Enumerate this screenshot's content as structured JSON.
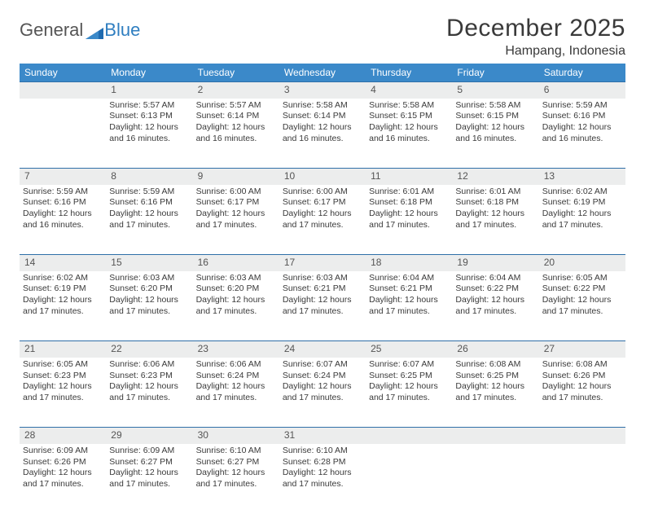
{
  "brand": {
    "part1": "General",
    "part2": "Blue"
  },
  "title": "December 2025",
  "location": "Hampang, Indonesia",
  "colors": {
    "header_bg": "#3b89c9",
    "header_text": "#ffffff",
    "row_sep": "#2f6fa8",
    "daynum_bg": "#eceded",
    "body_text": "#3a3a3a",
    "brand_accent": "#2f7ec0"
  },
  "weekdays": [
    "Sunday",
    "Monday",
    "Tuesday",
    "Wednesday",
    "Thursday",
    "Friday",
    "Saturday"
  ],
  "weeks": [
    {
      "nums": [
        "",
        "1",
        "2",
        "3",
        "4",
        "5",
        "6"
      ],
      "cells": [
        "",
        "Sunrise: 5:57 AM\nSunset: 6:13 PM\nDaylight: 12 hours and 16 minutes.",
        "Sunrise: 5:57 AM\nSunset: 6:14 PM\nDaylight: 12 hours and 16 minutes.",
        "Sunrise: 5:58 AM\nSunset: 6:14 PM\nDaylight: 12 hours and 16 minutes.",
        "Sunrise: 5:58 AM\nSunset: 6:15 PM\nDaylight: 12 hours and 16 minutes.",
        "Sunrise: 5:58 AM\nSunset: 6:15 PM\nDaylight: 12 hours and 16 minutes.",
        "Sunrise: 5:59 AM\nSunset: 6:16 PM\nDaylight: 12 hours and 16 minutes."
      ]
    },
    {
      "nums": [
        "7",
        "8",
        "9",
        "10",
        "11",
        "12",
        "13"
      ],
      "cells": [
        "Sunrise: 5:59 AM\nSunset: 6:16 PM\nDaylight: 12 hours and 16 minutes.",
        "Sunrise: 5:59 AM\nSunset: 6:16 PM\nDaylight: 12 hours and 17 minutes.",
        "Sunrise: 6:00 AM\nSunset: 6:17 PM\nDaylight: 12 hours and 17 minutes.",
        "Sunrise: 6:00 AM\nSunset: 6:17 PM\nDaylight: 12 hours and 17 minutes.",
        "Sunrise: 6:01 AM\nSunset: 6:18 PM\nDaylight: 12 hours and 17 minutes.",
        "Sunrise: 6:01 AM\nSunset: 6:18 PM\nDaylight: 12 hours and 17 minutes.",
        "Sunrise: 6:02 AM\nSunset: 6:19 PM\nDaylight: 12 hours and 17 minutes."
      ]
    },
    {
      "nums": [
        "14",
        "15",
        "16",
        "17",
        "18",
        "19",
        "20"
      ],
      "cells": [
        "Sunrise: 6:02 AM\nSunset: 6:19 PM\nDaylight: 12 hours and 17 minutes.",
        "Sunrise: 6:03 AM\nSunset: 6:20 PM\nDaylight: 12 hours and 17 minutes.",
        "Sunrise: 6:03 AM\nSunset: 6:20 PM\nDaylight: 12 hours and 17 minutes.",
        "Sunrise: 6:03 AM\nSunset: 6:21 PM\nDaylight: 12 hours and 17 minutes.",
        "Sunrise: 6:04 AM\nSunset: 6:21 PM\nDaylight: 12 hours and 17 minutes.",
        "Sunrise: 6:04 AM\nSunset: 6:22 PM\nDaylight: 12 hours and 17 minutes.",
        "Sunrise: 6:05 AM\nSunset: 6:22 PM\nDaylight: 12 hours and 17 minutes."
      ]
    },
    {
      "nums": [
        "21",
        "22",
        "23",
        "24",
        "25",
        "26",
        "27"
      ],
      "cells": [
        "Sunrise: 6:05 AM\nSunset: 6:23 PM\nDaylight: 12 hours and 17 minutes.",
        "Sunrise: 6:06 AM\nSunset: 6:23 PM\nDaylight: 12 hours and 17 minutes.",
        "Sunrise: 6:06 AM\nSunset: 6:24 PM\nDaylight: 12 hours and 17 minutes.",
        "Sunrise: 6:07 AM\nSunset: 6:24 PM\nDaylight: 12 hours and 17 minutes.",
        "Sunrise: 6:07 AM\nSunset: 6:25 PM\nDaylight: 12 hours and 17 minutes.",
        "Sunrise: 6:08 AM\nSunset: 6:25 PM\nDaylight: 12 hours and 17 minutes.",
        "Sunrise: 6:08 AM\nSunset: 6:26 PM\nDaylight: 12 hours and 17 minutes."
      ]
    },
    {
      "nums": [
        "28",
        "29",
        "30",
        "31",
        "",
        "",
        ""
      ],
      "cells": [
        "Sunrise: 6:09 AM\nSunset: 6:26 PM\nDaylight: 12 hours and 17 minutes.",
        "Sunrise: 6:09 AM\nSunset: 6:27 PM\nDaylight: 12 hours and 17 minutes.",
        "Sunrise: 6:10 AM\nSunset: 6:27 PM\nDaylight: 12 hours and 17 minutes.",
        "Sunrise: 6:10 AM\nSunset: 6:28 PM\nDaylight: 12 hours and 17 minutes.",
        "",
        "",
        ""
      ]
    }
  ]
}
